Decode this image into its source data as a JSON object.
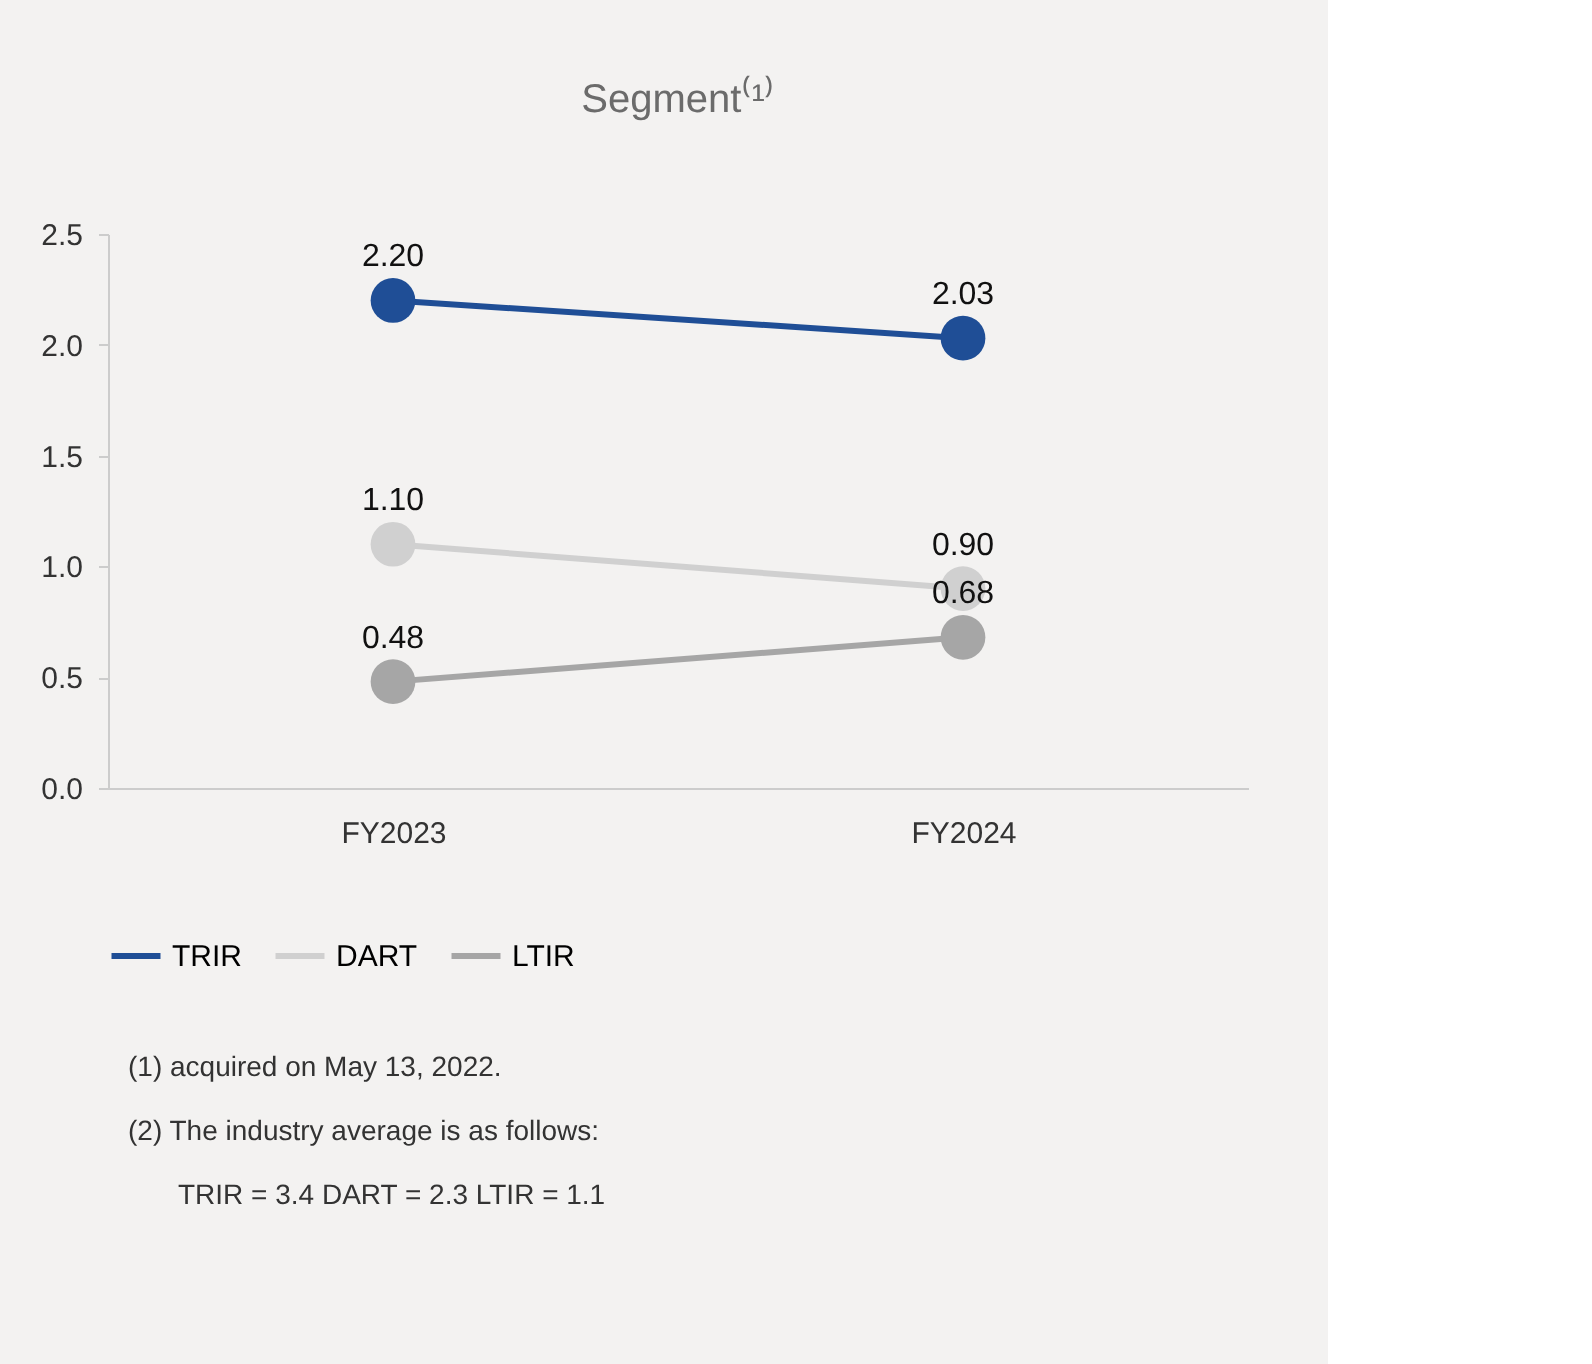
{
  "chart_data": {
    "type": "line",
    "title": "Segment⁽¹⁾",
    "categories": [
      "FY2023",
      "FY2024"
    ],
    "series": [
      {
        "name": "TRIR",
        "color": "#1f4e96",
        "values": [
          2.2,
          2.03
        ],
        "value_labels": [
          "2.20",
          "2.03"
        ]
      },
      {
        "name": "DART",
        "color": "#d0d0d0",
        "values": [
          1.1,
          0.9
        ],
        "value_labels": [
          "1.10",
          "0.90"
        ]
      },
      {
        "name": "LTIR",
        "color": "#a6a6a6",
        "values": [
          0.48,
          0.68
        ],
        "value_labels": [
          "0.48",
          "0.68"
        ]
      }
    ],
    "ylim": [
      0,
      2.5
    ],
    "yticks": [
      {
        "value": 0,
        "label": "0.0"
      },
      {
        "value": 0.5,
        "label": "0.5"
      },
      {
        "value": 1,
        "label": "1.0"
      },
      {
        "value": 1.5,
        "label": "1.5"
      },
      {
        "value": 2,
        "label": "2.0"
      },
      {
        "value": 2.5,
        "label": "2.5"
      }
    ],
    "grid": false,
    "legend": "bottom",
    "marker": "circle",
    "line_style": "solid",
    "annotations": [
      "(1) acquired on May 13, 2022.",
      "(2) The industry average is as follows:",
      "TRIR = 3.4    DART = 2.3    LTIR = 1.1"
    ]
  }
}
